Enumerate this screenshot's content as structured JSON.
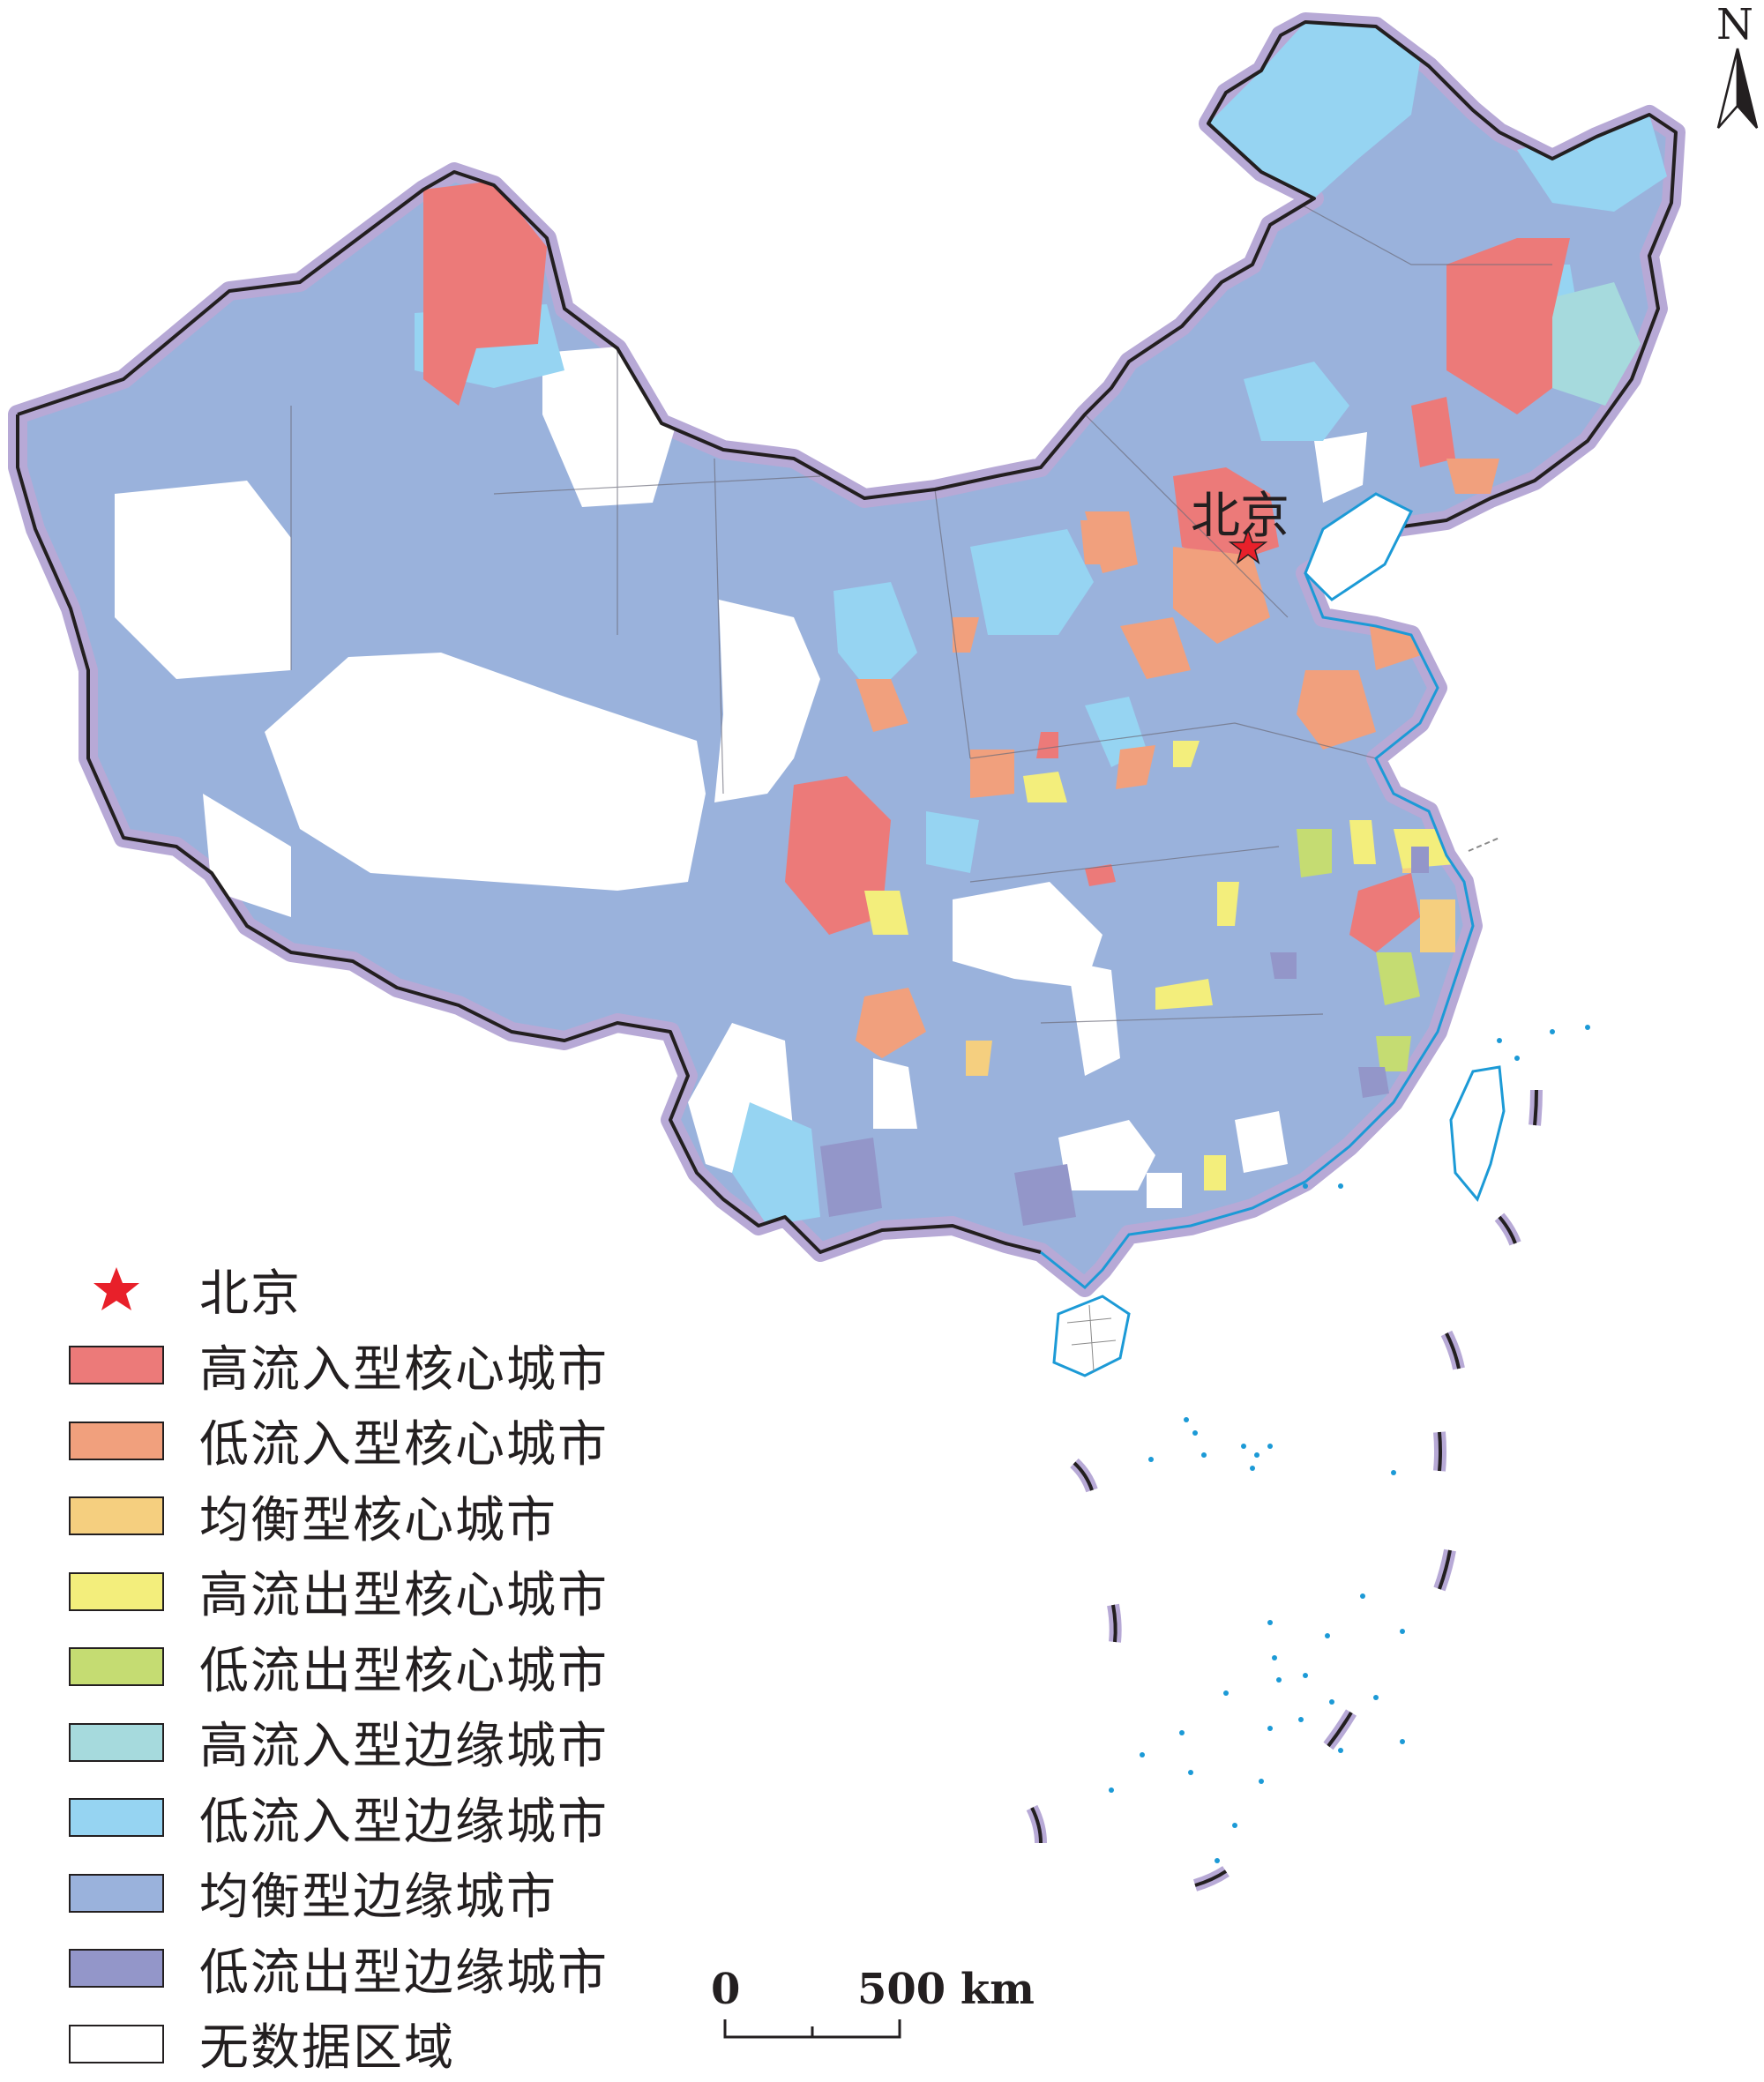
{
  "capital": {
    "name": "北京"
  },
  "north_label": "N",
  "legend": [
    {
      "label": "北京",
      "type": "star",
      "color": "#e8202a"
    },
    {
      "label": "高流入型核心城市",
      "color": "#ec7a79"
    },
    {
      "label": "低流入型核心城市",
      "color": "#f1a07d"
    },
    {
      "label": "均衡型核心城市",
      "color": "#f5cf7f"
    },
    {
      "label": "高流出型核心城市",
      "color": "#f3ee7c"
    },
    {
      "label": "低流出型核心城市",
      "color": "#c5dc72"
    },
    {
      "label": "高流入型边缘城市",
      "color": "#a6dadd"
    },
    {
      "label": "低流入型边缘城市",
      "color": "#96d4f2"
    },
    {
      "label": "均衡型边缘城市",
      "color": "#9ab2dc"
    },
    {
      "label": "低流出型边缘城市",
      "color": "#9396c9"
    },
    {
      "label": "无数据区域",
      "color": "#ffffff"
    }
  ],
  "scale_bar": {
    "zero": "0",
    "label": "500 km"
  }
}
